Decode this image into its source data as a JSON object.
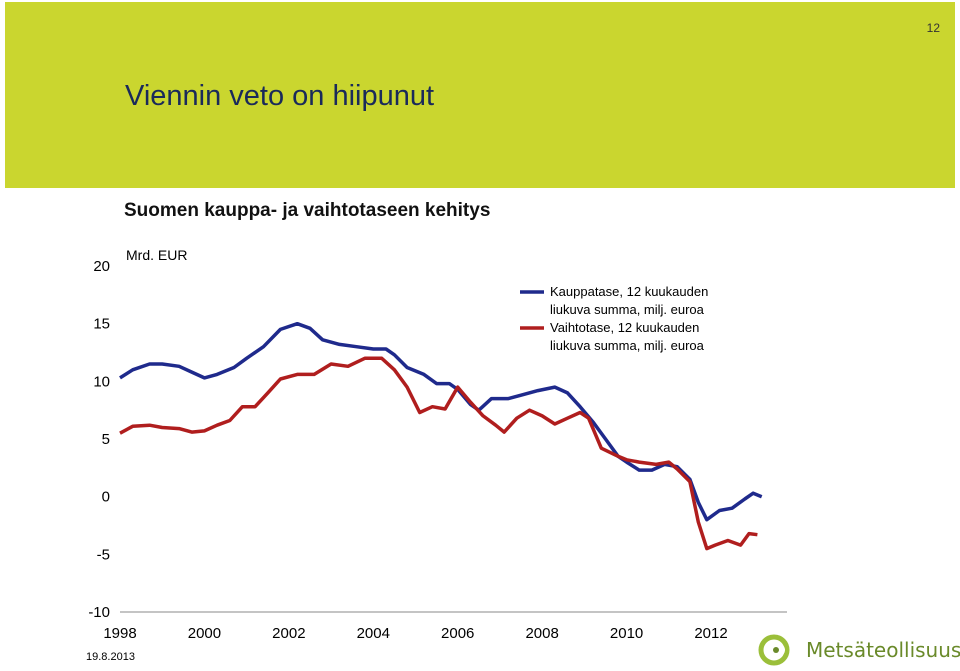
{
  "page": {
    "title": "Viennin veto on hiipunut",
    "number": "12",
    "date": "19.8.2013",
    "logo_text": "Metsäteollisuus",
    "header_color": "#cad62f"
  },
  "chart_data": {
    "type": "line",
    "title": "Suomen kauppa- ja vaihtotaseen kehitys",
    "unit_label": "Mrd. EUR",
    "ylim": [
      -10,
      20
    ],
    "yticks": [
      20,
      15,
      10,
      5,
      0,
      -5,
      -10
    ],
    "xlim": [
      1998,
      2013.8
    ],
    "xticks": [
      1998,
      2000,
      2002,
      2004,
      2006,
      2008,
      2010,
      2012
    ],
    "grid": false,
    "legend_position": "top-right",
    "series": [
      {
        "name": "Kauppatase, 12 kuukauden liukuva summa, milj. euroa",
        "color": "#1f2a8c",
        "points": [
          [
            1998.0,
            10.3
          ],
          [
            1998.3,
            11.0
          ],
          [
            1998.7,
            11.5
          ],
          [
            1999.0,
            11.5
          ],
          [
            1999.4,
            11.3
          ],
          [
            1999.7,
            10.8
          ],
          [
            2000.0,
            10.3
          ],
          [
            2000.3,
            10.6
          ],
          [
            2000.7,
            11.2
          ],
          [
            2001.0,
            12.0
          ],
          [
            2001.4,
            13.0
          ],
          [
            2001.8,
            14.5
          ],
          [
            2002.2,
            15.0
          ],
          [
            2002.5,
            14.6
          ],
          [
            2002.8,
            13.6
          ],
          [
            2003.2,
            13.2
          ],
          [
            2003.6,
            13.0
          ],
          [
            2004.0,
            12.8
          ],
          [
            2004.3,
            12.8
          ],
          [
            2004.5,
            12.3
          ],
          [
            2004.8,
            11.2
          ],
          [
            2005.2,
            10.6
          ],
          [
            2005.5,
            9.8
          ],
          [
            2005.8,
            9.8
          ],
          [
            2006.0,
            9.3
          ],
          [
            2006.3,
            8.0
          ],
          [
            2006.5,
            7.5
          ],
          [
            2006.8,
            8.5
          ],
          [
            2007.2,
            8.5
          ],
          [
            2007.5,
            8.8
          ],
          [
            2007.9,
            9.2
          ],
          [
            2008.3,
            9.5
          ],
          [
            2008.6,
            9.0
          ],
          [
            2008.9,
            7.8
          ],
          [
            2009.2,
            6.5
          ],
          [
            2009.5,
            5.0
          ],
          [
            2009.8,
            3.5
          ],
          [
            2010.0,
            3.0
          ],
          [
            2010.3,
            2.3
          ],
          [
            2010.6,
            2.3
          ],
          [
            2010.9,
            2.8
          ],
          [
            2011.2,
            2.6
          ],
          [
            2011.5,
            1.5
          ],
          [
            2011.7,
            -0.5
          ],
          [
            2011.9,
            -2.0
          ],
          [
            2012.2,
            -1.2
          ],
          [
            2012.5,
            -1.0
          ],
          [
            2012.8,
            -0.2
          ],
          [
            2013.0,
            0.3
          ],
          [
            2013.2,
            0.0
          ]
        ]
      },
      {
        "name": "Vaihtotase, 12 kuukauden liukuva summa, milj. euroa",
        "color": "#b01e1e",
        "points": [
          [
            1998.0,
            5.5
          ],
          [
            1998.3,
            6.1
          ],
          [
            1998.7,
            6.2
          ],
          [
            1999.0,
            6.0
          ],
          [
            1999.4,
            5.9
          ],
          [
            1999.7,
            5.6
          ],
          [
            2000.0,
            5.7
          ],
          [
            2000.3,
            6.2
          ],
          [
            2000.6,
            6.6
          ],
          [
            2000.9,
            7.8
          ],
          [
            2001.2,
            7.8
          ],
          [
            2001.5,
            9.0
          ],
          [
            2001.8,
            10.2
          ],
          [
            2002.2,
            10.6
          ],
          [
            2002.6,
            10.6
          ],
          [
            2003.0,
            11.5
          ],
          [
            2003.4,
            11.3
          ],
          [
            2003.8,
            12.0
          ],
          [
            2004.2,
            12.0
          ],
          [
            2004.5,
            11.0
          ],
          [
            2004.8,
            9.5
          ],
          [
            2005.1,
            7.3
          ],
          [
            2005.4,
            7.8
          ],
          [
            2005.7,
            7.6
          ],
          [
            2006.0,
            9.5
          ],
          [
            2006.3,
            8.2
          ],
          [
            2006.6,
            7.0
          ],
          [
            2006.9,
            6.2
          ],
          [
            2007.1,
            5.6
          ],
          [
            2007.4,
            6.8
          ],
          [
            2007.7,
            7.5
          ],
          [
            2008.0,
            7.0
          ],
          [
            2008.3,
            6.3
          ],
          [
            2008.6,
            6.8
          ],
          [
            2008.9,
            7.3
          ],
          [
            2009.1,
            6.8
          ],
          [
            2009.4,
            4.2
          ],
          [
            2009.8,
            3.5
          ],
          [
            2010.0,
            3.2
          ],
          [
            2010.3,
            3.0
          ],
          [
            2010.7,
            2.8
          ],
          [
            2011.0,
            3.0
          ],
          [
            2011.2,
            2.4
          ],
          [
            2011.5,
            1.3
          ],
          [
            2011.7,
            -2.2
          ],
          [
            2011.9,
            -4.5
          ],
          [
            2012.1,
            -4.2
          ],
          [
            2012.4,
            -3.8
          ],
          [
            2012.7,
            -4.2
          ],
          [
            2012.9,
            -3.2
          ],
          [
            2013.1,
            -3.3
          ]
        ]
      }
    ]
  }
}
